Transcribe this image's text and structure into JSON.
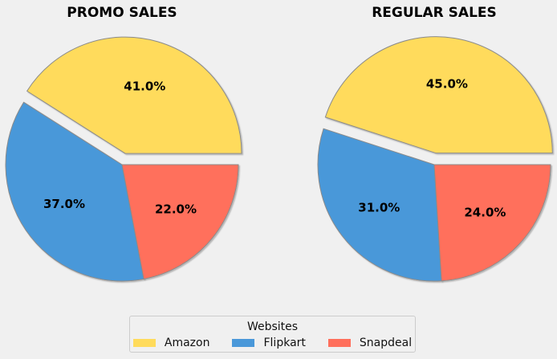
{
  "legend": {
    "title": "Websites",
    "entries": [
      "Amazon",
      "Flipkart",
      "Snapdeal"
    ]
  },
  "colors": {
    "Amazon": "#ffdb5c",
    "Flipkart": "#4a98d9",
    "Snapdeal": "#ff6f5c",
    "edge": "#8a8a8a",
    "background": "#f0f0f0"
  },
  "chart_data": [
    {
      "type": "pie",
      "title": "PROMO SALES",
      "categories": [
        "Amazon",
        "Flipkart",
        "Snapdeal"
      ],
      "values": [
        41.0,
        37.0,
        22.0
      ],
      "labels": [
        "41.0%",
        "37.0%",
        "22.0%"
      ],
      "explode": [
        0.1,
        0,
        0
      ],
      "shadow": true,
      "start_angle": 0
    },
    {
      "type": "pie",
      "title": "REGULAR SALES",
      "categories": [
        "Amazon",
        "Flipkart",
        "Snapdeal"
      ],
      "values": [
        45.0,
        31.0,
        24.0
      ],
      "labels": [
        "45.0%",
        "31.0%",
        "24.0%"
      ],
      "explode": [
        0.1,
        0,
        0
      ],
      "shadow": true,
      "start_angle": 0
    }
  ]
}
